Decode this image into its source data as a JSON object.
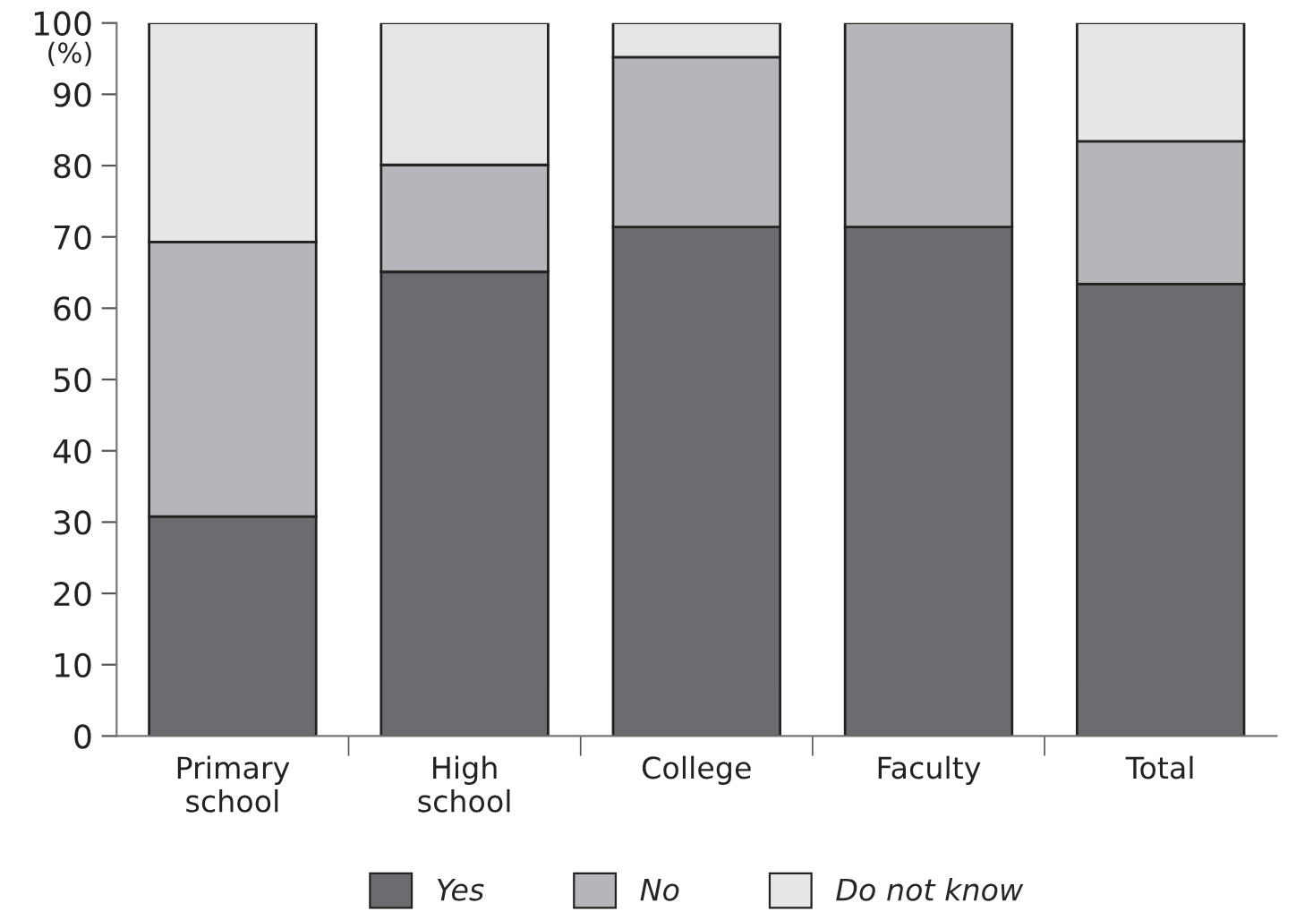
{
  "chart_data": {
    "type": "bar",
    "stacked": true,
    "ylabel": "(%)",
    "categories": [
      "Primary\nschool",
      "High\nschool",
      "College",
      "Faculty",
      "Total"
    ],
    "series": [
      {
        "name": "Yes",
        "color": "#6b6c70",
        "values": [
          30.8,
          65.1,
          71.4,
          71.4,
          63.4
        ]
      },
      {
        "name": "No",
        "color": "#b5b6b9",
        "values": [
          38.5,
          15.0,
          23.8,
          28.6,
          20.0
        ]
      },
      {
        "name": "Do not know",
        "color": "#e5e6e8",
        "values": [
          30.7,
          19.9,
          4.8,
          null,
          16.6
        ]
      }
    ],
    "ylim": [
      0,
      100
    ],
    "yticks": [
      0,
      10,
      20,
      30,
      40,
      50,
      60,
      70,
      80,
      90,
      100
    ],
    "grid": false,
    "legend": "bottom"
  }
}
